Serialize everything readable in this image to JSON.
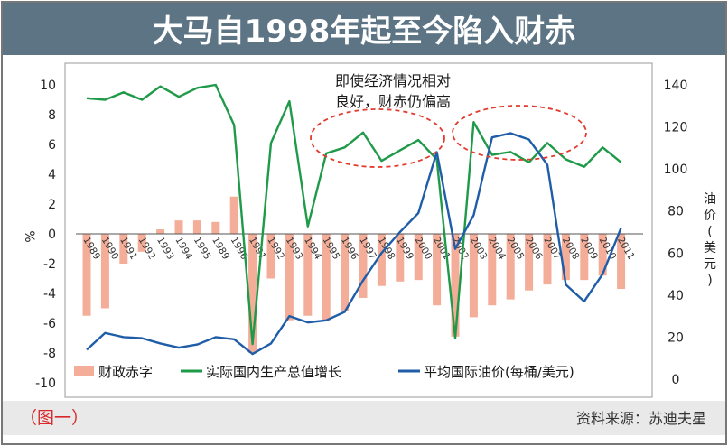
{
  "chart_data": {
    "type": "bar+line",
    "title": "大马自1998年起至今陷入财赤",
    "figure_label": "（图一）",
    "source": "资料来源：苏迪夫星",
    "annotation_lines": [
      "即使经济情况相对",
      "良好，财赤仍偏高"
    ],
    "y_left": {
      "ylim": [
        -10,
        10
      ],
      "ticks": [
        10,
        8,
        6,
        4,
        2,
        0,
        -2,
        -4,
        -6,
        -8,
        -10
      ],
      "label": "%"
    },
    "y_right": {
      "ylim": [
        0,
        140
      ],
      "ticks": [
        140,
        120,
        100,
        80,
        60,
        40,
        20,
        0
      ],
      "label_chars": [
        "油",
        "价",
        "(",
        "美",
        "元",
        ")"
      ]
    },
    "categories": [
      "1989",
      "1990",
      "1991",
      "1992",
      "1993",
      "1994",
      "1995",
      "1989",
      "1996",
      "1991",
      "1992",
      "1993",
      "1994",
      "1995",
      "1996",
      "1997",
      "1998",
      "1999",
      "2000",
      "2001",
      "2002",
      "2003",
      "2004",
      "2005",
      "2006",
      "2007",
      "2008",
      "2009",
      "2010",
      "2011"
    ],
    "series": [
      {
        "name": "财政赤字",
        "type": "bar",
        "axis": "left",
        "color": "#f4ad98",
        "values": [
          -5.5,
          -5.0,
          -2.0,
          -1.2,
          0.3,
          0.9,
          0.9,
          0.8,
          2.5,
          -8.0,
          -3.0,
          -5.8,
          -5.5,
          -5.8,
          -5.2,
          -4.3,
          -3.5,
          -3.2,
          -3.1,
          -4.8,
          -6.9,
          -5.6,
          -4.8,
          -4.4,
          -3.8,
          -3.4,
          -3.1,
          -3.1,
          -2.8,
          -3.7
        ]
      },
      {
        "name": "实际国内生产总值增长",
        "type": "line",
        "axis": "left",
        "color": "#1e9a48",
        "values": [
          9.1,
          9.0,
          9.5,
          9.0,
          9.9,
          9.2,
          9.8,
          10.0,
          7.3,
          -7.4,
          6.1,
          8.9,
          0.5,
          5.4,
          5.8,
          6.8,
          4.9,
          5.6,
          6.3,
          5.0,
          -7.0,
          7.5,
          5.3,
          5.5,
          4.8,
          6.1,
          5.0,
          4.5,
          5.8,
          4.8
        ]
      },
      {
        "name": "平均国际油价(每桶/美元)",
        "type": "line",
        "axis": "right",
        "color": "#1f5da8",
        "values": [
          14,
          22,
          20,
          19.5,
          17,
          15,
          16.5,
          20,
          19,
          12,
          17,
          30,
          27,
          28,
          32,
          47,
          60,
          70,
          79,
          108,
          62,
          78,
          115,
          117,
          114,
          102,
          45,
          37,
          50,
          72
        ]
      }
    ],
    "legend_position": "bottom",
    "grid": false
  }
}
